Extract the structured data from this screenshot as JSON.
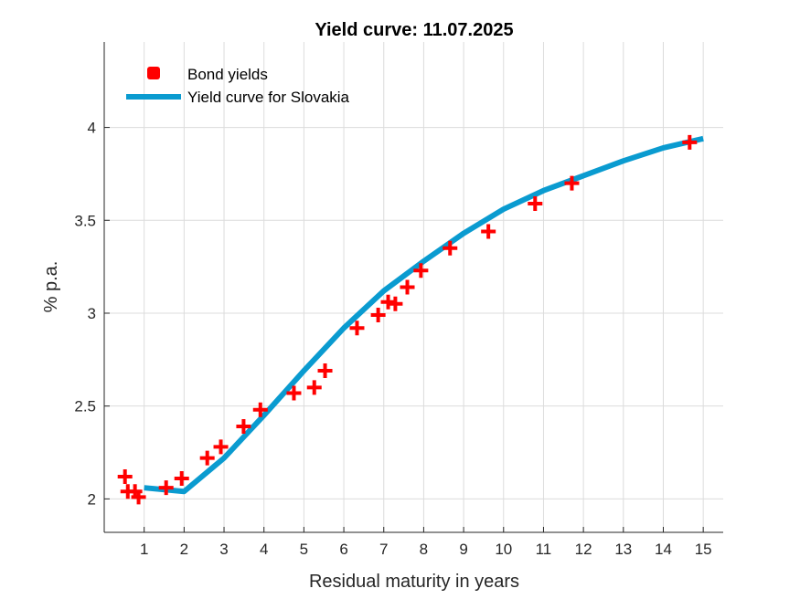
{
  "chart_data": {
    "type": "line",
    "title": "Yield curve: 11.07.2025",
    "xlabel": "Residual maturity in years",
    "ylabel": "% p.a.",
    "xlim": [
      0,
      15.5
    ],
    "ylim": [
      1.82,
      4.46
    ],
    "xticks": [
      1,
      2,
      3,
      4,
      5,
      6,
      7,
      8,
      9,
      10,
      11,
      12,
      13,
      14,
      15
    ],
    "yticks": [
      2,
      2.5,
      3,
      3.5,
      4
    ],
    "ytick_labels": [
      "2",
      "2.5",
      "3",
      "3.5",
      "4"
    ],
    "grid": true,
    "legend_position": "top-left",
    "series": [
      {
        "name": "Bond yields",
        "kind": "scatter",
        "marker": "plus",
        "color": "#ff0000",
        "x": [
          0.52,
          0.59,
          0.77,
          0.86,
          1.55,
          1.94,
          2.58,
          2.92,
          3.49,
          3.91,
          4.75,
          5.26,
          5.53,
          6.33,
          6.86,
          7.11,
          7.29,
          7.59,
          7.93,
          8.66,
          9.62,
          10.79,
          11.71,
          14.66
        ],
        "y": [
          2.12,
          2.04,
          2.04,
          2.01,
          2.06,
          2.11,
          2.22,
          2.28,
          2.39,
          2.48,
          2.57,
          2.6,
          2.69,
          2.92,
          2.99,
          3.06,
          3.05,
          3.14,
          3.23,
          3.35,
          3.44,
          3.59,
          3.7,
          3.92
        ]
      },
      {
        "name": "Yield curve for Slovakia",
        "kind": "line",
        "color": "#0a9bd0",
        "x": [
          1,
          2,
          3,
          4,
          5,
          6,
          7,
          8,
          9,
          10,
          11,
          12,
          13,
          14,
          15
        ],
        "y": [
          2.06,
          2.04,
          2.22,
          2.45,
          2.69,
          2.92,
          3.12,
          3.28,
          3.43,
          3.56,
          3.66,
          3.74,
          3.82,
          3.89,
          3.94
        ]
      }
    ]
  }
}
